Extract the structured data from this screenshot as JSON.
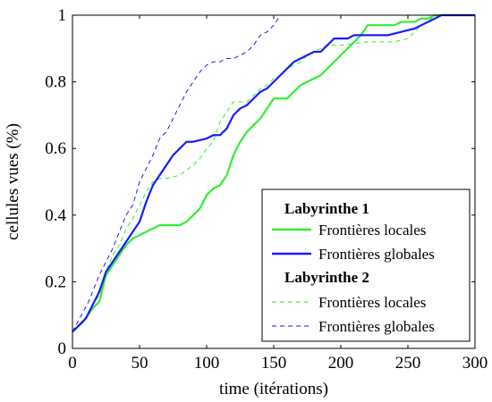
{
  "chart_data": {
    "type": "line",
    "xlabel": "time (itérations)",
    "ylabel": "cellules vues (%)",
    "xlim": [
      0,
      300
    ],
    "ylim": [
      0,
      1
    ],
    "xticks": [
      0,
      50,
      100,
      150,
      200,
      250,
      300
    ],
    "yticks": [
      0,
      0.2,
      0.4,
      0.6,
      0.8,
      1
    ],
    "ytick_labels": [
      "0",
      "0.2",
      "0.4",
      "0.6",
      "0.8",
      "1"
    ],
    "grid": false,
    "legend_position": "bottom-right",
    "legend_groups": [
      {
        "title": "Labyrinthe 1",
        "series": [
          0,
          1
        ]
      },
      {
        "title": "Labyrinthe 2",
        "series": [
          2,
          3
        ]
      }
    ],
    "series": [
      {
        "name": "Frontières locales",
        "color": "#33ee33",
        "style": "solid",
        "points": [
          [
            0,
            0.05
          ],
          [
            8,
            0.08
          ],
          [
            15,
            0.12
          ],
          [
            20,
            0.14
          ],
          [
            25,
            0.22
          ],
          [
            30,
            0.25
          ],
          [
            35,
            0.28
          ],
          [
            40,
            0.31
          ],
          [
            45,
            0.33
          ],
          [
            50,
            0.34
          ],
          [
            55,
            0.35
          ],
          [
            60,
            0.36
          ],
          [
            65,
            0.37
          ],
          [
            70,
            0.37
          ],
          [
            80,
            0.37
          ],
          [
            85,
            0.38
          ],
          [
            90,
            0.4
          ],
          [
            95,
            0.42
          ],
          [
            100,
            0.46
          ],
          [
            105,
            0.48
          ],
          [
            110,
            0.49
          ],
          [
            115,
            0.52
          ],
          [
            120,
            0.58
          ],
          [
            125,
            0.62
          ],
          [
            130,
            0.65
          ],
          [
            135,
            0.67
          ],
          [
            140,
            0.69
          ],
          [
            145,
            0.72
          ],
          [
            150,
            0.75
          ],
          [
            160,
            0.75
          ],
          [
            165,
            0.77
          ],
          [
            170,
            0.79
          ],
          [
            175,
            0.8
          ],
          [
            180,
            0.81
          ],
          [
            185,
            0.82
          ],
          [
            190,
            0.84
          ],
          [
            195,
            0.86
          ],
          [
            200,
            0.88
          ],
          [
            205,
            0.9
          ],
          [
            210,
            0.92
          ],
          [
            215,
            0.94
          ],
          [
            220,
            0.97
          ],
          [
            240,
            0.97
          ],
          [
            245,
            0.98
          ],
          [
            255,
            0.98
          ],
          [
            260,
            0.99
          ],
          [
            265,
            0.99
          ],
          [
            270,
            1.0
          ],
          [
            300,
            1.0
          ]
        ]
      },
      {
        "name": "Frontières globales",
        "color": "#1a1aff",
        "style": "solid",
        "points": [
          [
            0,
            0.05
          ],
          [
            10,
            0.09
          ],
          [
            15,
            0.13
          ],
          [
            20,
            0.17
          ],
          [
            25,
            0.23
          ],
          [
            30,
            0.26
          ],
          [
            35,
            0.29
          ],
          [
            40,
            0.32
          ],
          [
            45,
            0.35
          ],
          [
            50,
            0.38
          ],
          [
            55,
            0.44
          ],
          [
            60,
            0.49
          ],
          [
            65,
            0.52
          ],
          [
            70,
            0.55
          ],
          [
            75,
            0.58
          ],
          [
            80,
            0.6
          ],
          [
            85,
            0.62
          ],
          [
            90,
            0.62
          ],
          [
            100,
            0.63
          ],
          [
            105,
            0.64
          ],
          [
            110,
            0.64
          ],
          [
            115,
            0.66
          ],
          [
            120,
            0.7
          ],
          [
            125,
            0.72
          ],
          [
            130,
            0.73
          ],
          [
            135,
            0.75
          ],
          [
            140,
            0.77
          ],
          [
            145,
            0.78
          ],
          [
            150,
            0.8
          ],
          [
            155,
            0.82
          ],
          [
            160,
            0.84
          ],
          [
            165,
            0.86
          ],
          [
            170,
            0.87
          ],
          [
            175,
            0.88
          ],
          [
            180,
            0.89
          ],
          [
            185,
            0.89
          ],
          [
            190,
            0.91
          ],
          [
            195,
            0.93
          ],
          [
            205,
            0.93
          ],
          [
            210,
            0.94
          ],
          [
            235,
            0.94
          ],
          [
            245,
            0.95
          ],
          [
            255,
            0.96
          ],
          [
            260,
            0.97
          ],
          [
            265,
            0.98
          ],
          [
            270,
            0.99
          ],
          [
            275,
            1.0
          ],
          [
            300,
            1.0
          ]
        ]
      },
      {
        "name": "Frontières locales",
        "color": "#33ee33",
        "style": "dashed",
        "points": [
          [
            0,
            0.05
          ],
          [
            10,
            0.09
          ],
          [
            15,
            0.13
          ],
          [
            20,
            0.16
          ],
          [
            25,
            0.23
          ],
          [
            30,
            0.28
          ],
          [
            35,
            0.31
          ],
          [
            40,
            0.36
          ],
          [
            45,
            0.39
          ],
          [
            50,
            0.43
          ],
          [
            55,
            0.47
          ],
          [
            60,
            0.5
          ],
          [
            65,
            0.51
          ],
          [
            70,
            0.51
          ],
          [
            80,
            0.52
          ],
          [
            90,
            0.55
          ],
          [
            95,
            0.57
          ],
          [
            100,
            0.6
          ],
          [
            105,
            0.62
          ],
          [
            110,
            0.68
          ],
          [
            115,
            0.71
          ],
          [
            120,
            0.74
          ],
          [
            125,
            0.74
          ],
          [
            130,
            0.74
          ],
          [
            135,
            0.76
          ],
          [
            140,
            0.78
          ],
          [
            145,
            0.79
          ],
          [
            150,
            0.81
          ],
          [
            155,
            0.82
          ],
          [
            160,
            0.84
          ],
          [
            165,
            0.85
          ],
          [
            170,
            0.86
          ],
          [
            175,
            0.88
          ],
          [
            180,
            0.89
          ],
          [
            185,
            0.9
          ],
          [
            190,
            0.91
          ],
          [
            200,
            0.91
          ],
          [
            220,
            0.92
          ],
          [
            240,
            0.92
          ],
          [
            250,
            0.93
          ],
          [
            255,
            0.95
          ],
          [
            260,
            0.97
          ],
          [
            265,
            0.98
          ],
          [
            270,
            1.0
          ],
          [
            300,
            1.0
          ]
        ]
      },
      {
        "name": "Frontières globales",
        "color": "#1a1aff",
        "style": "dashed",
        "points": [
          [
            0,
            0.05
          ],
          [
            8,
            0.11
          ],
          [
            12,
            0.14
          ],
          [
            16,
            0.18
          ],
          [
            20,
            0.22
          ],
          [
            25,
            0.26
          ],
          [
            30,
            0.3
          ],
          [
            35,
            0.35
          ],
          [
            40,
            0.4
          ],
          [
            45,
            0.43
          ],
          [
            50,
            0.5
          ],
          [
            55,
            0.54
          ],
          [
            60,
            0.58
          ],
          [
            65,
            0.63
          ],
          [
            70,
            0.65
          ],
          [
            75,
            0.69
          ],
          [
            80,
            0.73
          ],
          [
            85,
            0.77
          ],
          [
            90,
            0.8
          ],
          [
            95,
            0.83
          ],
          [
            100,
            0.85
          ],
          [
            105,
            0.86
          ],
          [
            110,
            0.86
          ],
          [
            115,
            0.87
          ],
          [
            120,
            0.87
          ],
          [
            125,
            0.88
          ],
          [
            130,
            0.89
          ],
          [
            135,
            0.91
          ],
          [
            140,
            0.94
          ],
          [
            145,
            0.95
          ],
          [
            150,
            0.97
          ],
          [
            155,
            1.0
          ],
          [
            300,
            1.0
          ]
        ]
      }
    ]
  }
}
